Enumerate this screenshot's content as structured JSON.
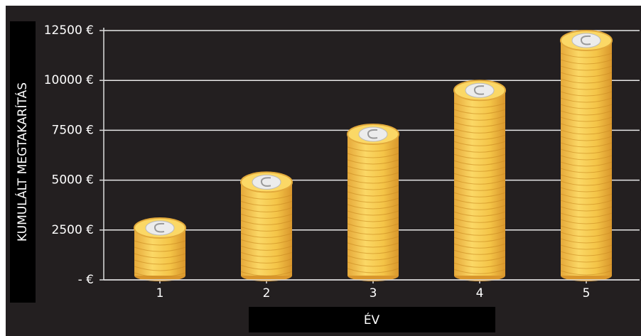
{
  "chart_data": {
    "type": "bar",
    "categories": [
      "1",
      "2",
      "3",
      "4",
      "5"
    ],
    "values": [
      2600,
      4900,
      7300,
      9500,
      12000
    ],
    "color": "#f5c542",
    "ylim": [
      0,
      12500
    ],
    "yticks": [
      {
        "value": 0,
        "label": "- €"
      },
      {
        "value": 2500,
        "label": "2500 €"
      },
      {
        "value": 5000,
        "label": "5000 €"
      },
      {
        "value": 7500,
        "label": "7500 €"
      },
      {
        "value": 10000,
        "label": "10000 €"
      },
      {
        "value": 12500,
        "label": "12500 €"
      }
    ],
    "grid": true,
    "y_label": "KUMULÁLT MEGTAKARÍTÁS",
    "x_label": "ÉV"
  }
}
